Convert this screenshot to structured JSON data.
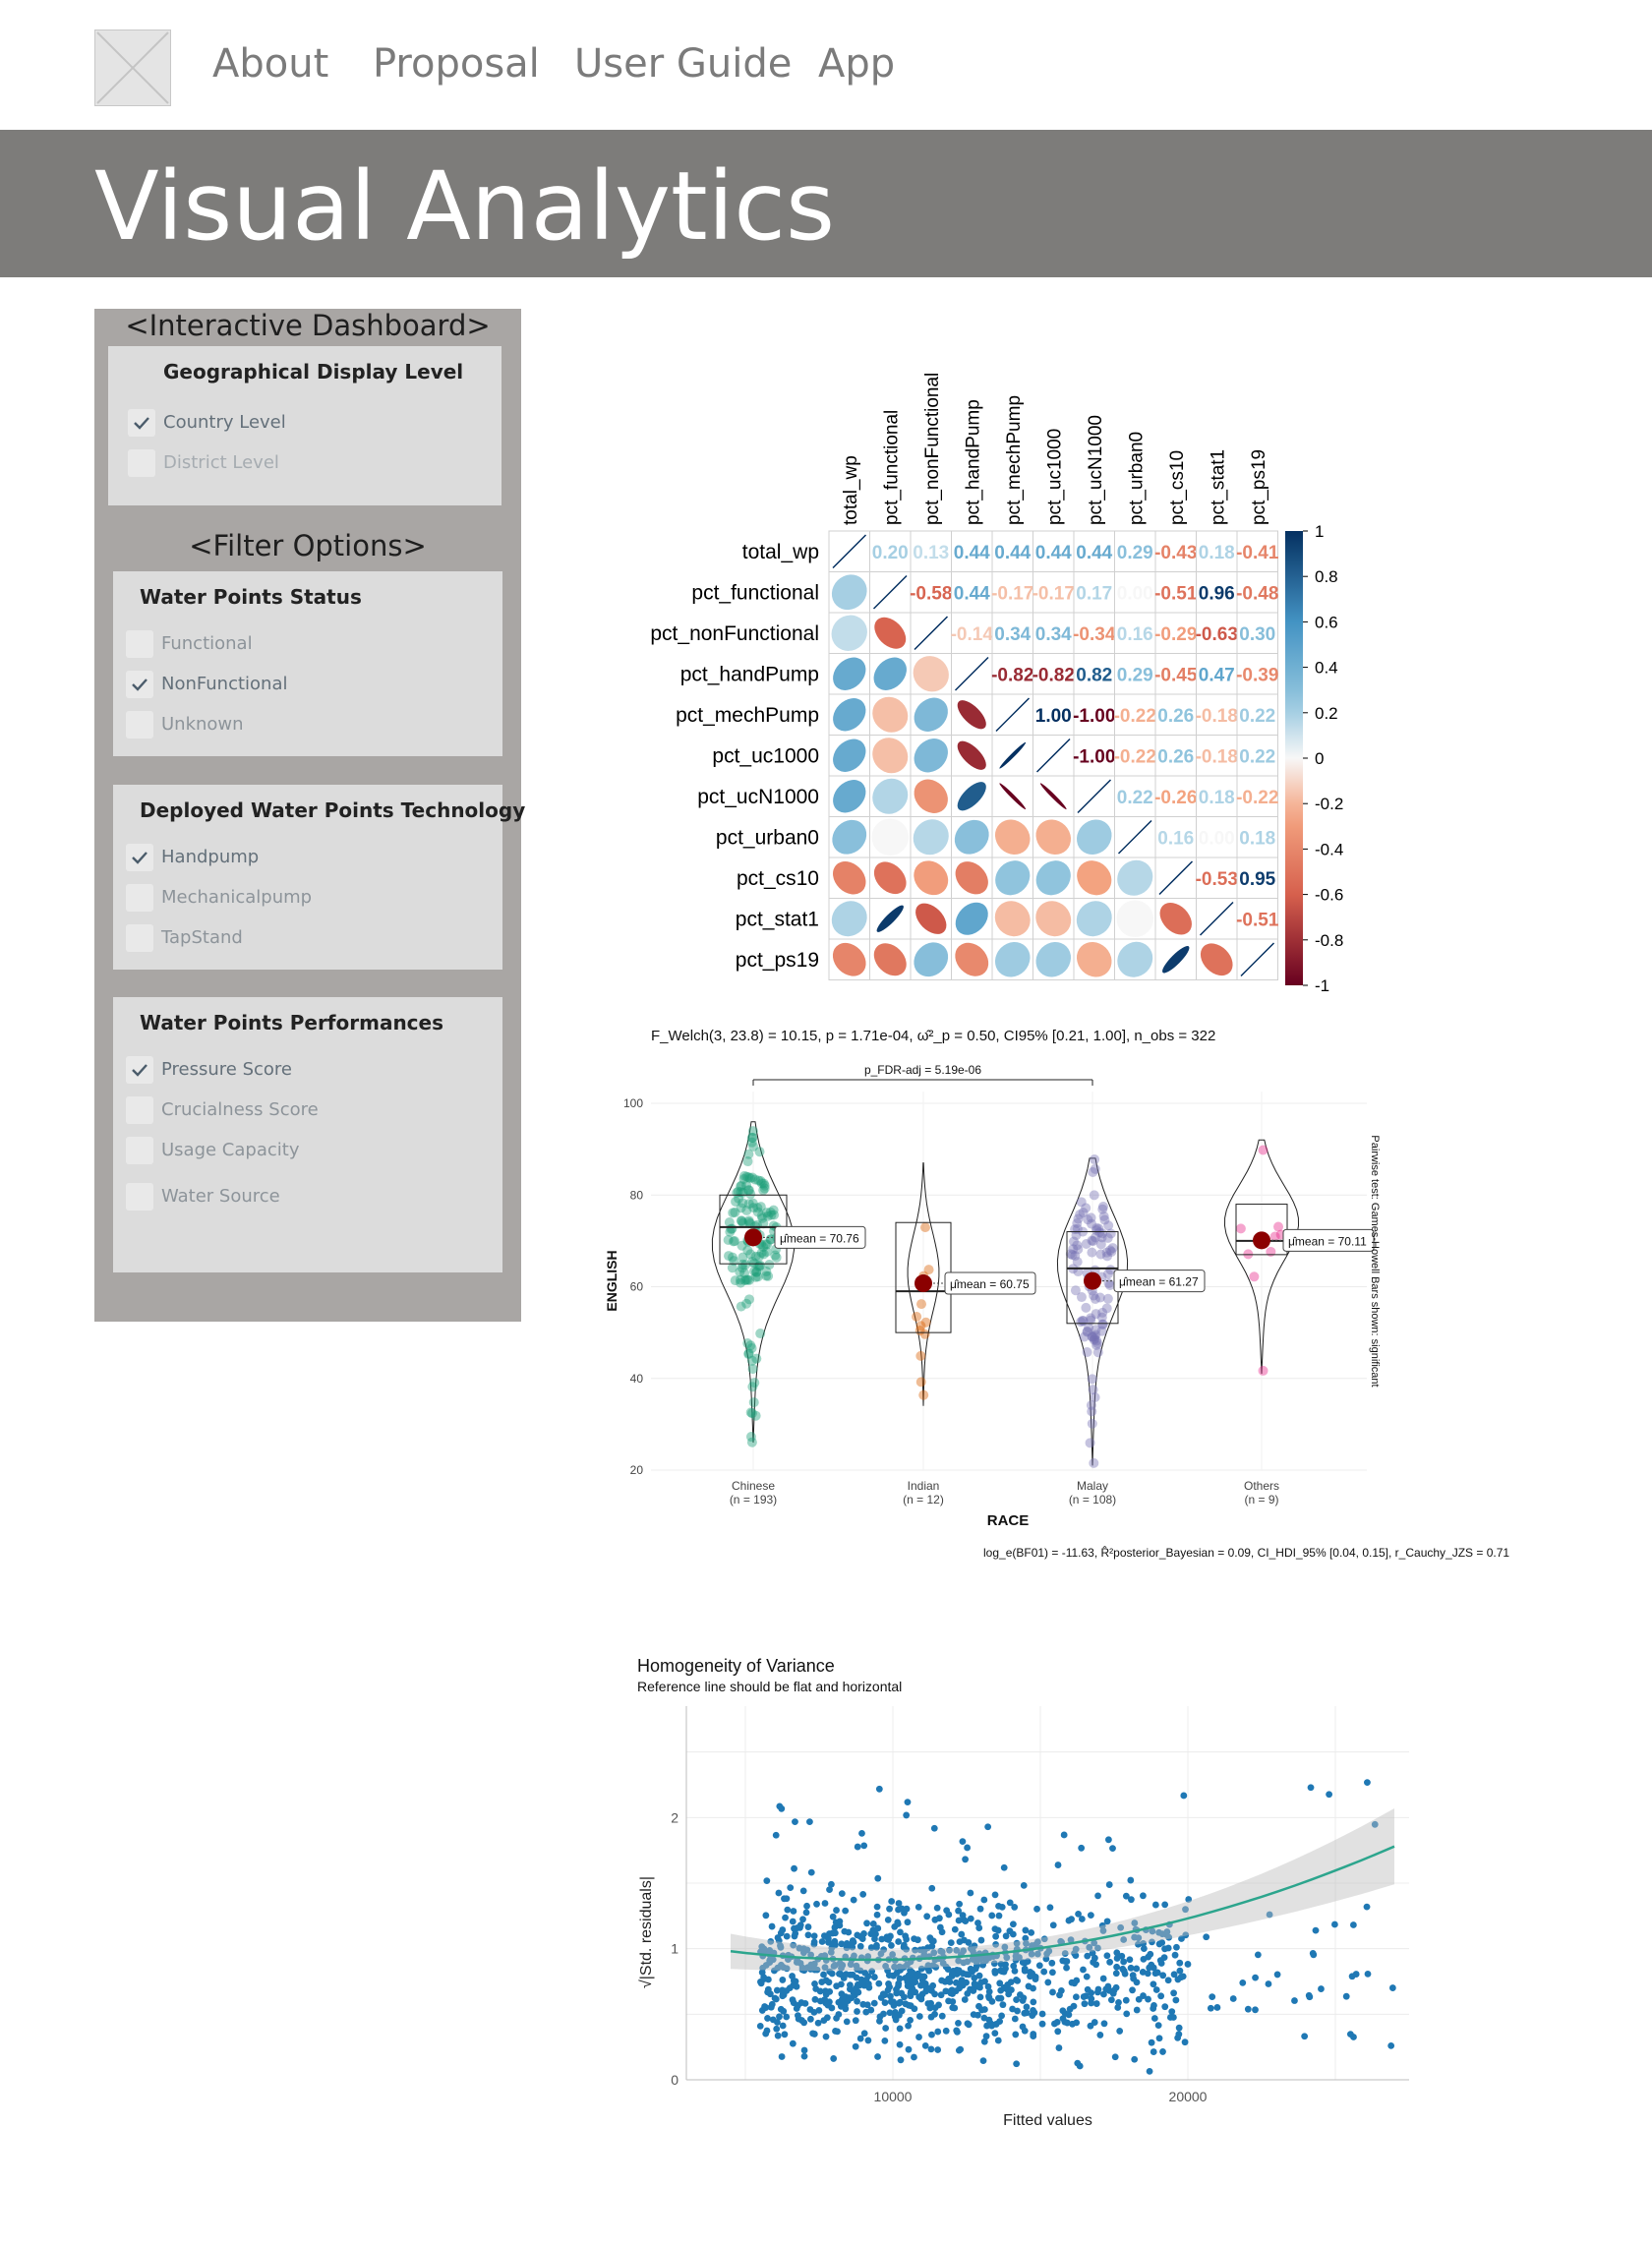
{
  "nav": {
    "logo_icon": "image-placeholder-icon",
    "items": [
      "About",
      "Proposal",
      "User Guide",
      "App"
    ]
  },
  "banner": {
    "title": "Visual Analytics"
  },
  "sidebar": {
    "dashboard_header": "<Interactive Dashboard>",
    "geo": {
      "title": "Geographical Display Level",
      "options": [
        {
          "label": "Country Level",
          "checked": true
        },
        {
          "label": "District Level",
          "checked": false
        }
      ]
    },
    "filter_header": "<Filter Options>",
    "status": {
      "title": "Water Points Status",
      "options": [
        {
          "label": "Functional",
          "checked": false
        },
        {
          "label": "NonFunctional",
          "checked": true
        },
        {
          "label": "Unknown",
          "checked": false
        }
      ]
    },
    "tech": {
      "title": "Deployed Water Points Technology",
      "options": [
        {
          "label": "Handpump",
          "checked": true
        },
        {
          "label": "Mechanicalpump",
          "checked": false
        },
        {
          "label": "TapStand",
          "checked": false
        }
      ]
    },
    "perf": {
      "title": "Water Points Performances",
      "options": [
        {
          "label": "Pressure Score",
          "checked": true
        },
        {
          "label": "Crucialness Score",
          "checked": false
        },
        {
          "label": "Usage Capacity",
          "checked": false
        },
        {
          "label": "Water Source",
          "checked": false
        }
      ]
    }
  },
  "chart_data": [
    {
      "type": "heatmap",
      "variables": [
        "total_wp",
        "pct_functional",
        "pct_nonFunctional",
        "pct_handPump",
        "pct_mechPump",
        "pct_uc1000",
        "pct_ucN1000",
        "pct_urban0",
        "pct_cs10",
        "pct_stat1",
        "pct_ps19"
      ],
      "upper_values": [
        [
          null,
          0.2,
          0.13,
          0.44,
          0.44,
          0.44,
          0.44,
          0.29,
          -0.43,
          0.18,
          -0.41
        ],
        [
          null,
          null,
          -0.58,
          0.44,
          -0.17,
          -0.17,
          0.17,
          0.0,
          -0.51,
          0.96,
          -0.48
        ],
        [
          null,
          null,
          null,
          -0.14,
          0.34,
          0.34,
          -0.34,
          0.16,
          -0.29,
          -0.63,
          0.3
        ],
        [
          null,
          null,
          null,
          null,
          -0.82,
          -0.82,
          0.82,
          0.29,
          -0.45,
          0.47,
          -0.39
        ],
        [
          null,
          null,
          null,
          null,
          null,
          1.0,
          -1.0,
          -0.22,
          0.26,
          -0.18,
          0.22
        ],
        [
          null,
          null,
          null,
          null,
          null,
          null,
          -1.0,
          -0.22,
          0.26,
          -0.18,
          0.22
        ],
        [
          null,
          null,
          null,
          null,
          null,
          null,
          null,
          0.22,
          -0.26,
          0.18,
          -0.22
        ],
        [
          null,
          null,
          null,
          null,
          null,
          null,
          null,
          null,
          0.16,
          0.0,
          0.18
        ],
        [
          null,
          null,
          null,
          null,
          null,
          null,
          null,
          null,
          null,
          -0.53,
          0.95
        ],
        [
          null,
          null,
          null,
          null,
          null,
          null,
          null,
          null,
          null,
          null,
          -0.51
        ],
        [
          null,
          null,
          null,
          null,
          null,
          null,
          null,
          null,
          null,
          null,
          null
        ]
      ],
      "colorbar_ticks": [
        "1",
        "0.8",
        "0.6",
        "0.4",
        "0.2",
        "0",
        "-0.2",
        "-0.4",
        "-0.6",
        "-0.8",
        "-1"
      ],
      "colorbar_range": [
        -1,
        1
      ]
    },
    {
      "type": "scatter",
      "subtype": "violin-box",
      "stats_title": "F_Welch(3, 23.8) = 10.15, p = 1.71e-04, ω̂²_p = 0.50, CI95% [0.21, 1.00], n_obs = 322",
      "pairwise_label": "p_FDR-adj = 5.19e-06",
      "xlabel": "RACE",
      "ylabel": "ENGLISH",
      "yticks": [
        20,
        40,
        60,
        80,
        100
      ],
      "ylim": [
        20,
        100
      ],
      "categories": [
        "Chinese",
        "Indian",
        "Malay",
        "Others"
      ],
      "n_labels": [
        "(n = 193)",
        "(n = 12)",
        "(n = 108)",
        "(n = 9)"
      ],
      "means": [
        70.76,
        60.75,
        61.27,
        70.11
      ],
      "mean_labels": [
        "μ̂mean = 70.76",
        "μ̂mean = 60.75",
        "μ̂mean = 61.27",
        "μ̂mean = 70.11"
      ],
      "side_caption": "Pairwise test: Games-Howell Bars shown: significant",
      "bottom_caption": "log_e(BF01) = -11.63, R̂²posterior_Bayesian = 0.09, CI_HDI_95% [0.04, 0.15], r_Cauchy_JZS = 0.71",
      "colors": [
        "#1b9e77",
        "#d95f02",
        "#7570b3",
        "#e7298a"
      ]
    },
    {
      "type": "scatter",
      "title": "Homogeneity of Variance",
      "subtitle": "Reference line should be flat and horizontal",
      "xlabel": "Fitted values",
      "ylabel": "√|Std. residuals|",
      "xticks": [
        10000,
        20000
      ],
      "yticks": [
        0,
        1,
        2
      ],
      "xlim": [
        3000,
        27500
      ],
      "ylim": [
        0,
        2.85
      ],
      "point_color": "#1f78b4",
      "smooth_color": "#2ca58d"
    }
  ]
}
